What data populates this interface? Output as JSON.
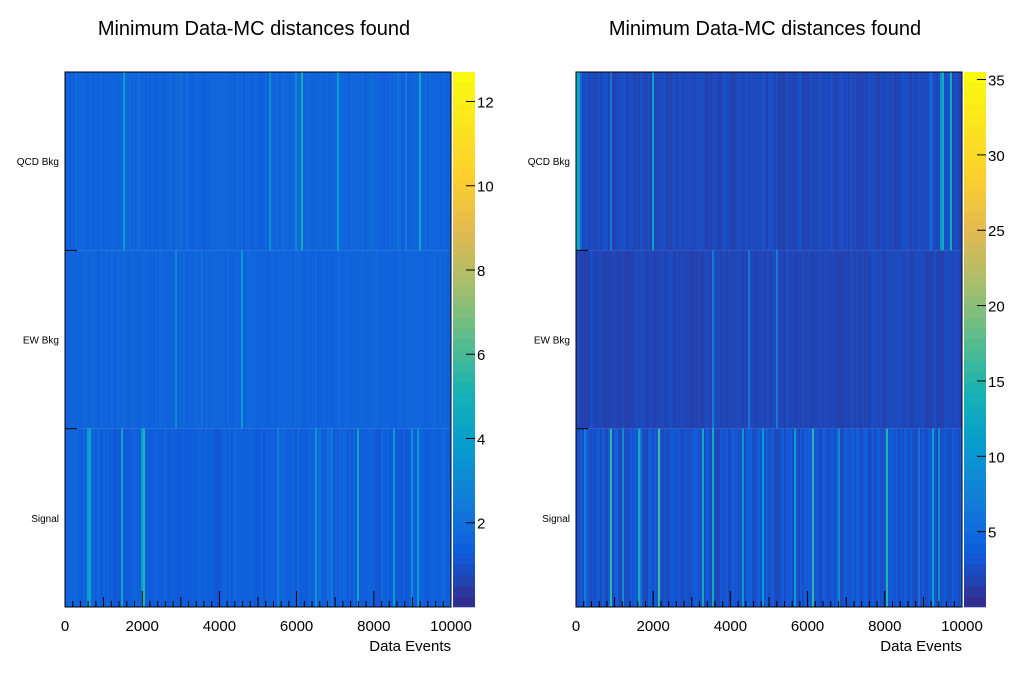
{
  "chart_data": [
    {
      "type": "heatmap",
      "title": "Minimum Data-MC distances found",
      "xlabel": "Data Events",
      "ylabel": "",
      "x_ticks": [
        "0",
        "2000",
        "4000",
        "6000",
        "8000",
        "10000"
      ],
      "xlim": [
        0,
        10000
      ],
      "categories": [
        "Signal",
        "EW Bkg",
        "QCD Bkg"
      ],
      "colorbar": {
        "range": [
          0,
          12.7
        ],
        "ticks": [
          "2",
          "4",
          "6",
          "8",
          "10",
          "12"
        ],
        "tick_values": [
          2,
          4,
          6,
          8,
          10,
          12
        ]
      },
      "rows": [
        {
          "name": "QCD Bkg",
          "typical_value": 1.6,
          "spread": 0.5,
          "spike_rate": 0.04,
          "spike_max": 3.5
        },
        {
          "name": "EW Bkg",
          "typical_value": 1.6,
          "spread": 0.4,
          "spike_rate": 0.02,
          "spike_max": 2.6
        },
        {
          "name": "Signal",
          "typical_value": 1.4,
          "spread": 0.6,
          "spike_rate": 0.06,
          "spike_max": 4.0
        }
      ],
      "seed": 7
    },
    {
      "type": "heatmap",
      "title": "Minimum Data-MC distances found",
      "xlabel": "Data Events",
      "ylabel": "",
      "x_ticks": [
        "0",
        "2000",
        "4000",
        "6000",
        "8000",
        "10000"
      ],
      "xlim": [
        0,
        10000
      ],
      "categories": [
        "Signal",
        "EW Bkg",
        "QCD Bkg"
      ],
      "colorbar": {
        "range": [
          0,
          35.5
        ],
        "ticks": [
          "5",
          "10",
          "15",
          "20",
          "25",
          "30",
          "35"
        ],
        "tick_values": [
          5,
          10,
          15,
          20,
          25,
          30,
          35
        ]
      },
      "rows": [
        {
          "name": "QCD Bkg",
          "typical_value": 2.2,
          "spread": 1.2,
          "spike_rate": 0.05,
          "spike_max": 12
        },
        {
          "name": "EW Bkg",
          "typical_value": 2.0,
          "spread": 1.0,
          "spike_rate": 0.02,
          "spike_max": 6
        },
        {
          "name": "Signal",
          "typical_value": 3.0,
          "spread": 2.0,
          "spike_rate": 0.12,
          "spike_max": 14
        }
      ],
      "seed": 19
    }
  ]
}
